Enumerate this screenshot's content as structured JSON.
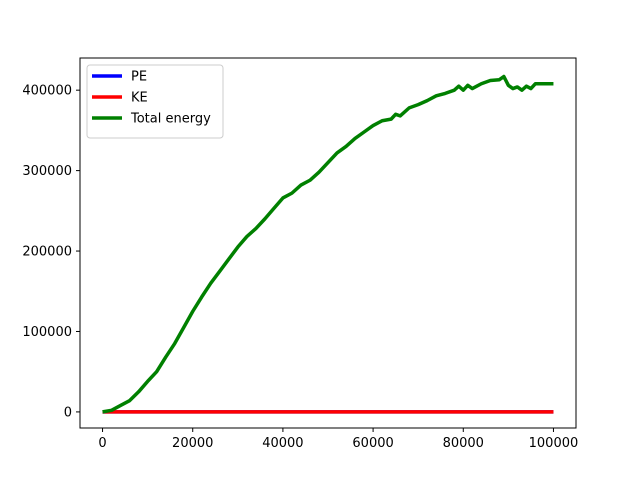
{
  "chart_data": {
    "type": "line",
    "title": "",
    "xlabel": "",
    "ylabel": "",
    "xlim": [
      -5000,
      105000
    ],
    "ylim": [
      -20000,
      440000
    ],
    "xticks": [
      0,
      20000,
      40000,
      60000,
      80000,
      100000
    ],
    "yticks": [
      0,
      100000,
      200000,
      300000,
      400000
    ],
    "xtick_labels": [
      "0",
      "20000",
      "40000",
      "60000",
      "80000",
      "100000"
    ],
    "ytick_labels": [
      "0",
      "100000",
      "200000",
      "300000",
      "400000"
    ],
    "grid": false,
    "legend_placement": "top-left",
    "series": [
      {
        "name": "PE",
        "color": "#0000ff",
        "x": [
          0,
          100000
        ],
        "y": [
          0,
          0
        ]
      },
      {
        "name": "KE",
        "color": "#ff0000",
        "x": [
          0,
          100000
        ],
        "y": [
          0,
          0
        ]
      },
      {
        "name": "Total energy",
        "color": "#008000",
        "x": [
          0,
          2000,
          4000,
          6000,
          8000,
          10000,
          12000,
          14000,
          16000,
          18000,
          20000,
          22000,
          24000,
          26000,
          28000,
          30000,
          32000,
          34000,
          36000,
          38000,
          40000,
          42000,
          44000,
          46000,
          48000,
          50000,
          52000,
          54000,
          56000,
          58000,
          60000,
          62000,
          64000,
          65000,
          66000,
          68000,
          70000,
          72000,
          74000,
          76000,
          78000,
          79000,
          80000,
          81000,
          82000,
          84000,
          86000,
          88000,
          89000,
          90000,
          91000,
          92000,
          93000,
          94000,
          95000,
          96000,
          98000,
          100000
        ],
        "y": [
          0,
          2000,
          8000,
          14000,
          25000,
          38000,
          50000,
          68000,
          85000,
          105000,
          125000,
          143000,
          160000,
          175000,
          190000,
          205000,
          218000,
          228000,
          240000,
          253000,
          266000,
          272000,
          282000,
          288000,
          298000,
          310000,
          322000,
          330000,
          340000,
          348000,
          356000,
          362000,
          364000,
          370000,
          368000,
          378000,
          382000,
          387000,
          393000,
          396000,
          400000,
          405000,
          400000,
          406000,
          402000,
          408000,
          412000,
          413000,
          417000,
          406000,
          402000,
          404000,
          400000,
          405000,
          402000,
          408000,
          408000,
          408000
        ]
      }
    ]
  }
}
